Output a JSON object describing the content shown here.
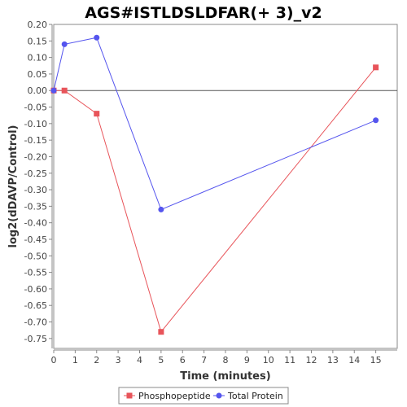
{
  "chart_data": {
    "type": "line",
    "title": "AGS#ISTLDSLDFAR(+ 3)_v2",
    "xlabel": "Time (minutes)",
    "ylabel": "log2(dDAVP/Control)",
    "xlim": [
      0,
      16
    ],
    "ylim": [
      -0.78,
      0.2
    ],
    "xticks": [
      0,
      1,
      2,
      3,
      4,
      5,
      6,
      7,
      8,
      9,
      10,
      11,
      12,
      13,
      14,
      15
    ],
    "yticks": [
      0.2,
      0.15,
      0.1,
      0.05,
      0.0,
      -0.05,
      -0.1,
      -0.15,
      -0.2,
      -0.25,
      -0.3,
      -0.35,
      -0.4,
      -0.45,
      -0.5,
      -0.55,
      -0.6,
      -0.65,
      -0.7,
      -0.75
    ],
    "ytick_labels": [
      "0.20",
      "0.15",
      "0.10",
      "0.05",
      "0.00",
      "-0.05",
      "-0.10",
      "-0.15",
      "-0.20",
      "-0.25",
      "-0.30",
      "-0.35",
      "-0.40",
      "-0.45",
      "-0.50",
      "-0.55",
      "-0.60",
      "-0.65",
      "-0.70",
      "-0.75"
    ],
    "zero_line": true,
    "grid": false,
    "legend_position": "bottom-center",
    "series": [
      {
        "name": "Phosphopeptide",
        "color": "#e8545a",
        "marker": "square",
        "x": [
          0,
          0.5,
          2,
          5,
          15
        ],
        "y": [
          0.0,
          0.0,
          -0.07,
          -0.73,
          0.07
        ]
      },
      {
        "name": "Total Protein",
        "color": "#5555ee",
        "marker": "circle",
        "x": [
          0,
          0.5,
          2,
          5,
          15
        ],
        "y": [
          0.0,
          0.14,
          0.16,
          -0.36,
          -0.09
        ]
      }
    ]
  }
}
